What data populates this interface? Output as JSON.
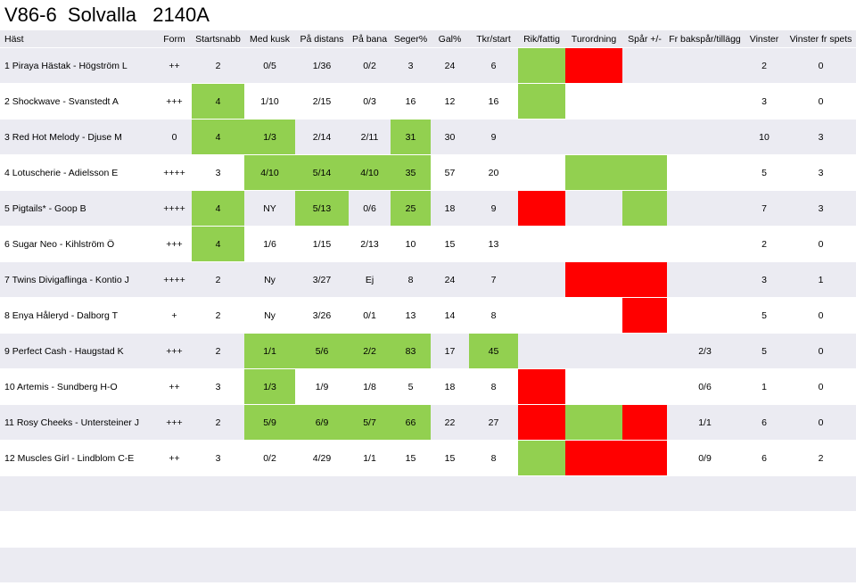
{
  "title": "V86-6  Solvalla   2140A",
  "columns": [
    "Häst",
    "Form",
    "Startsnabb",
    "Med kusk",
    "På distans",
    "På bana",
    "Seger%",
    "Gal%",
    "Tkr/start",
    "Rik/fattig",
    "Turordning",
    "Spår +/-",
    "Fr bakspår/tillägg",
    "Vinster",
    "Vinster fr spets"
  ],
  "column_keys": [
    "horse",
    "form",
    "startsnabb",
    "med_kusk",
    "pa_distans",
    "pa_bana",
    "seger",
    "gal",
    "tkr_start",
    "rik_fattig",
    "turordning",
    "spar",
    "fr_bakspar",
    "vinster",
    "vinster_spets"
  ],
  "colors": {
    "good": "#92d050",
    "bad": "#ff0000",
    "band": "#ebebf2"
  },
  "rows": [
    {
      "horse": "1 Piraya Hästak - Högström L",
      "form": "++",
      "startsnabb": "2",
      "med_kusk": "0/5",
      "pa_distans": "1/36",
      "pa_bana": "0/2",
      "seger": "3",
      "gal": "24",
      "tkr_start": "6",
      "rik_fattig": "",
      "turordning": "",
      "spar": "",
      "fr_bakspar": "",
      "vinster": "2",
      "vinster_spets": "0",
      "flags": {
        "rik_fattig": "good",
        "turordning": "bad"
      }
    },
    {
      "horse": "2 Shockwave - Svanstedt A",
      "form": "+++",
      "startsnabb": "4",
      "med_kusk": "1/10",
      "pa_distans": "2/15",
      "pa_bana": "0/3",
      "seger": "16",
      "gal": "12",
      "tkr_start": "16",
      "rik_fattig": "",
      "turordning": "",
      "spar": "",
      "fr_bakspar": "",
      "vinster": "3",
      "vinster_spets": "0",
      "flags": {
        "startsnabb": "good",
        "rik_fattig": "good"
      }
    },
    {
      "horse": "3 Red Hot Melody - Djuse M",
      "form": "0",
      "startsnabb": "4",
      "med_kusk": "1/3",
      "pa_distans": "2/14",
      "pa_bana": "2/11",
      "seger": "31",
      "gal": "30",
      "tkr_start": "9",
      "rik_fattig": "",
      "turordning": "",
      "spar": "",
      "fr_bakspar": "",
      "vinster": "10",
      "vinster_spets": "3",
      "flags": {
        "startsnabb": "good",
        "med_kusk": "good",
        "seger": "good"
      }
    },
    {
      "horse": "4 Lotuscherie - Adielsson E",
      "form": "++++",
      "startsnabb": "3",
      "med_kusk": "4/10",
      "pa_distans": "5/14",
      "pa_bana": "4/10",
      "seger": "35",
      "gal": "57",
      "tkr_start": "20",
      "rik_fattig": "",
      "turordning": "",
      "spar": "",
      "fr_bakspar": "",
      "vinster": "5",
      "vinster_spets": "3",
      "flags": {
        "med_kusk": "good",
        "pa_distans": "good",
        "pa_bana": "good",
        "seger": "good",
        "turordning": "good",
        "spar": "good"
      }
    },
    {
      "horse": "5 Pigtails* - Goop B",
      "form": "++++",
      "startsnabb": "4",
      "med_kusk": "NY",
      "pa_distans": "5/13",
      "pa_bana": "0/6",
      "seger": "25",
      "gal": "18",
      "tkr_start": "9",
      "rik_fattig": "",
      "turordning": "",
      "spar": "",
      "fr_bakspar": "",
      "vinster": "7",
      "vinster_spets": "3",
      "flags": {
        "startsnabb": "good",
        "pa_distans": "good",
        "seger": "good",
        "rik_fattig": "bad",
        "spar": "good"
      }
    },
    {
      "horse": "6 Sugar Neo - Kihlström Ö",
      "form": "+++",
      "startsnabb": "4",
      "med_kusk": "1/6",
      "pa_distans": "1/15",
      "pa_bana": "2/13",
      "seger": "10",
      "gal": "15",
      "tkr_start": "13",
      "rik_fattig": "",
      "turordning": "",
      "spar": "",
      "fr_bakspar": "",
      "vinster": "2",
      "vinster_spets": "0",
      "flags": {
        "startsnabb": "good"
      }
    },
    {
      "horse": "7 Twins Divigaflinga - Kontio J",
      "form": "++++",
      "startsnabb": "2",
      "med_kusk": "Ny",
      "pa_distans": "3/27",
      "pa_bana": "Ej",
      "seger": "8",
      "gal": "24",
      "tkr_start": "7",
      "rik_fattig": "",
      "turordning": "",
      "spar": "",
      "fr_bakspar": "",
      "vinster": "3",
      "vinster_spets": "1",
      "flags": {
        "turordning": "bad",
        "spar": "bad"
      }
    },
    {
      "horse": "8 Enya Håleryd - Dalborg T",
      "form": "+",
      "startsnabb": "2",
      "med_kusk": "Ny",
      "pa_distans": "3/26",
      "pa_bana": "0/1",
      "seger": "13",
      "gal": "14",
      "tkr_start": "8",
      "rik_fattig": "",
      "turordning": "",
      "spar": "",
      "fr_bakspar": "",
      "vinster": "5",
      "vinster_spets": "0",
      "flags": {
        "spar": "bad"
      }
    },
    {
      "horse": "9 Perfect Cash - Haugstad K",
      "form": "+++",
      "startsnabb": "2",
      "med_kusk": "1/1",
      "pa_distans": "5/6",
      "pa_bana": "2/2",
      "seger": "83",
      "gal": "17",
      "tkr_start": "45",
      "rik_fattig": "",
      "turordning": "",
      "spar": "",
      "fr_bakspar": "2/3",
      "vinster": "5",
      "vinster_spets": "0",
      "flags": {
        "med_kusk": "good",
        "pa_distans": "good",
        "pa_bana": "good",
        "seger": "good",
        "tkr_start": "good"
      }
    },
    {
      "horse": "10 Artemis - Sundberg H-O",
      "form": "++",
      "startsnabb": "3",
      "med_kusk": "1/3",
      "pa_distans": "1/9",
      "pa_bana": "1/8",
      "seger": "5",
      "gal": "18",
      "tkr_start": "8",
      "rik_fattig": "",
      "turordning": "",
      "spar": "",
      "fr_bakspar": "0/6",
      "vinster": "1",
      "vinster_spets": "0",
      "flags": {
        "med_kusk": "good",
        "rik_fattig": "bad"
      }
    },
    {
      "horse": "11 Rosy Cheeks - Untersteiner J",
      "form": "+++",
      "startsnabb": "2",
      "med_kusk": "5/9",
      "pa_distans": "6/9",
      "pa_bana": "5/7",
      "seger": "66",
      "gal": "22",
      "tkr_start": "27",
      "rik_fattig": "",
      "turordning": "",
      "spar": "",
      "fr_bakspar": "1/1",
      "vinster": "6",
      "vinster_spets": "0",
      "flags": {
        "med_kusk": "good",
        "pa_distans": "good",
        "pa_bana": "good",
        "seger": "good",
        "rik_fattig": "bad",
        "turordning": "good",
        "spar": "bad"
      }
    },
    {
      "horse": "12 Muscles Girl - Lindblom C-E",
      "form": "++",
      "startsnabb": "3",
      "med_kusk": "0/2",
      "pa_distans": "4/29",
      "pa_bana": "1/1",
      "seger": "15",
      "gal": "15",
      "tkr_start": "8",
      "rik_fattig": "",
      "turordning": "",
      "spar": "",
      "fr_bakspar": "0/9",
      "vinster": "6",
      "vinster_spets": "2",
      "flags": {
        "rik_fattig": "good",
        "turordning": "bad",
        "spar": "bad"
      }
    },
    {
      "horse": "",
      "form": "",
      "startsnabb": "",
      "med_kusk": "",
      "pa_distans": "",
      "pa_bana": "",
      "seger": "",
      "gal": "",
      "tkr_start": "",
      "rik_fattig": "",
      "turordning": "",
      "spar": "",
      "fr_bakspar": "",
      "vinster": "",
      "vinster_spets": "",
      "flags": {}
    },
    {
      "horse": "",
      "form": "",
      "startsnabb": "",
      "med_kusk": "",
      "pa_distans": "",
      "pa_bana": "",
      "seger": "",
      "gal": "",
      "tkr_start": "",
      "rik_fattig": "",
      "turordning": "",
      "spar": "",
      "fr_bakspar": "",
      "vinster": "",
      "vinster_spets": "",
      "flags": {}
    },
    {
      "horse": "",
      "form": "",
      "startsnabb": "",
      "med_kusk": "",
      "pa_distans": "",
      "pa_bana": "",
      "seger": "",
      "gal": "",
      "tkr_start": "",
      "rik_fattig": "",
      "turordning": "",
      "spar": "",
      "fr_bakspar": "",
      "vinster": "",
      "vinster_spets": "",
      "flags": {}
    }
  ]
}
